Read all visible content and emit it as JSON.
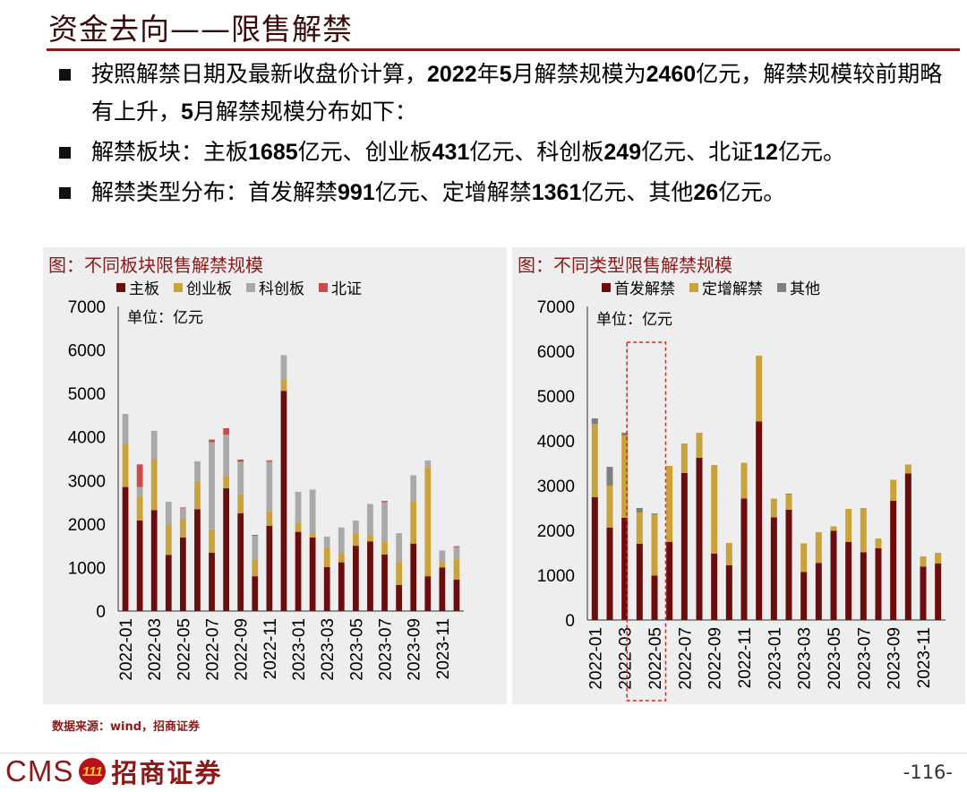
{
  "page": {
    "title": "资金去向——限售解禁",
    "source": "数据来源：wind，招商证券",
    "page_number": "-116-",
    "logo_latin": "CMS",
    "logo_chinese": "招商证券",
    "logo_badge": "111"
  },
  "bullets": [
    {
      "parts": [
        "按照解禁日期及最新收盘价计算，",
        "2022",
        "年",
        "5",
        "月解禁规模为",
        "2460",
        "亿元，解禁规模较前期略有上升，",
        "5",
        "月解禁规模分布如下："
      ]
    },
    {
      "parts": [
        "解禁板块：主板",
        "1685",
        "亿元、创业板",
        "431",
        "亿元、科创板",
        "249",
        "亿元、北证",
        "12",
        "亿元。"
      ]
    },
    {
      "parts": [
        "解禁类型分布：首发解禁",
        "991",
        "亿元、定增解禁",
        "1361",
        "亿元、其他",
        "26",
        "亿元。"
      ]
    }
  ],
  "chart_data": [
    {
      "type": "bar",
      "stacked": true,
      "title": "图：不同板块限售解禁规模",
      "unit_label": "单位：亿元",
      "ylim": [
        0,
        7000
      ],
      "yticks": [
        "0",
        "1000",
        "2000",
        "3000",
        "4000",
        "5000",
        "6000",
        "7000"
      ],
      "categories": [
        "2022-01",
        "2022-02",
        "2022-03",
        "2022-04",
        "2022-05",
        "2022-06",
        "2022-07",
        "2022-08",
        "2022-09",
        "2022-10",
        "2022-11",
        "2022-12",
        "2023-01",
        "2023-02",
        "2023-03",
        "2023-04",
        "2023-05",
        "2023-06",
        "2023-07",
        "2023-08",
        "2023-09",
        "2023-10",
        "2023-11",
        "2023-12"
      ],
      "tick_labels": [
        "2022-01",
        "2022-03",
        "2022-05",
        "2022-07",
        "2022-09",
        "2022-11",
        "2023-01",
        "2023-03",
        "2023-05",
        "2023-07",
        "2023-09",
        "2023-11"
      ],
      "series": [
        {
          "name": "主板",
          "color": "#6b0d0d",
          "values": [
            2850,
            2080,
            2320,
            1290,
            1690,
            2340,
            1340,
            2820,
            2250,
            800,
            1960,
            5060,
            1820,
            1690,
            1010,
            1120,
            1500,
            1600,
            1300,
            600,
            1550,
            800,
            1000,
            720
          ]
        },
        {
          "name": "创业板",
          "color": "#c9a23a",
          "values": [
            980,
            570,
            1170,
            700,
            431,
            650,
            540,
            280,
            430,
            380,
            340,
            260,
            200,
            100,
            440,
            200,
            280,
            140,
            300,
            540,
            960,
            2500,
            130,
            470
          ]
        },
        {
          "name": "科创板",
          "color": "#a9a9a9",
          "values": [
            700,
            200,
            650,
            520,
            249,
            450,
            2000,
            950,
            750,
            550,
            1130,
            560,
            720,
            1000,
            260,
            600,
            300,
            720,
            900,
            650,
            610,
            160,
            260,
            280
          ]
        },
        {
          "name": "北证",
          "color": "#cc4a4a",
          "values": [
            0,
            520,
            0,
            0,
            12,
            0,
            60,
            150,
            50,
            20,
            30,
            0,
            0,
            0,
            0,
            0,
            0,
            0,
            30,
            0,
            0,
            0,
            0,
            20
          ]
        }
      ]
    },
    {
      "type": "bar",
      "stacked": true,
      "title": "图：不同类型限售解禁规模",
      "unit_label": "单位：亿元",
      "ylim": [
        0,
        7000
      ],
      "yticks": [
        "0",
        "1000",
        "2000",
        "3000",
        "4000",
        "5000",
        "6000",
        "7000"
      ],
      "categories": [
        "2022-01",
        "2022-02",
        "2022-03",
        "2022-04",
        "2022-05",
        "2022-06",
        "2022-07",
        "2022-08",
        "2022-09",
        "2022-10",
        "2022-11",
        "2022-12",
        "2023-01",
        "2023-02",
        "2023-03",
        "2023-04",
        "2023-05",
        "2023-06",
        "2023-07",
        "2023-08",
        "2023-09",
        "2023-10",
        "2023-11",
        "2023-12"
      ],
      "tick_labels": [
        "2022-01",
        "2022-03",
        "2022-05",
        "2022-07",
        "2022-09",
        "2022-11",
        "2023-01",
        "2023-03",
        "2023-05",
        "2023-07",
        "2023-09",
        "2023-11"
      ],
      "highlight_category": "2022-05",
      "series": [
        {
          "name": "首发解禁",
          "color": "#6b0d0d",
          "values": [
            2740,
            2060,
            2280,
            1700,
            991,
            1740,
            3280,
            3620,
            1480,
            1220,
            2710,
            4430,
            2290,
            2460,
            1070,
            1270,
            1990,
            1740,
            1510,
            1600,
            2660,
            3270,
            1190,
            1260
          ]
        },
        {
          "name": "定增解禁",
          "color": "#c9a23a",
          "values": [
            1640,
            940,
            1840,
            700,
            1361,
            1700,
            660,
            560,
            1980,
            500,
            800,
            1470,
            420,
            340,
            640,
            690,
            100,
            740,
            990,
            220,
            470,
            200,
            230,
            240
          ]
        },
        {
          "name": "其他",
          "color": "#7f7f7f",
          "values": [
            120,
            420,
            60,
            100,
            26,
            0,
            0,
            0,
            0,
            0,
            0,
            0,
            0,
            20,
            0,
            0,
            0,
            0,
            0,
            0,
            0,
            0,
            0,
            0
          ]
        }
      ]
    }
  ]
}
